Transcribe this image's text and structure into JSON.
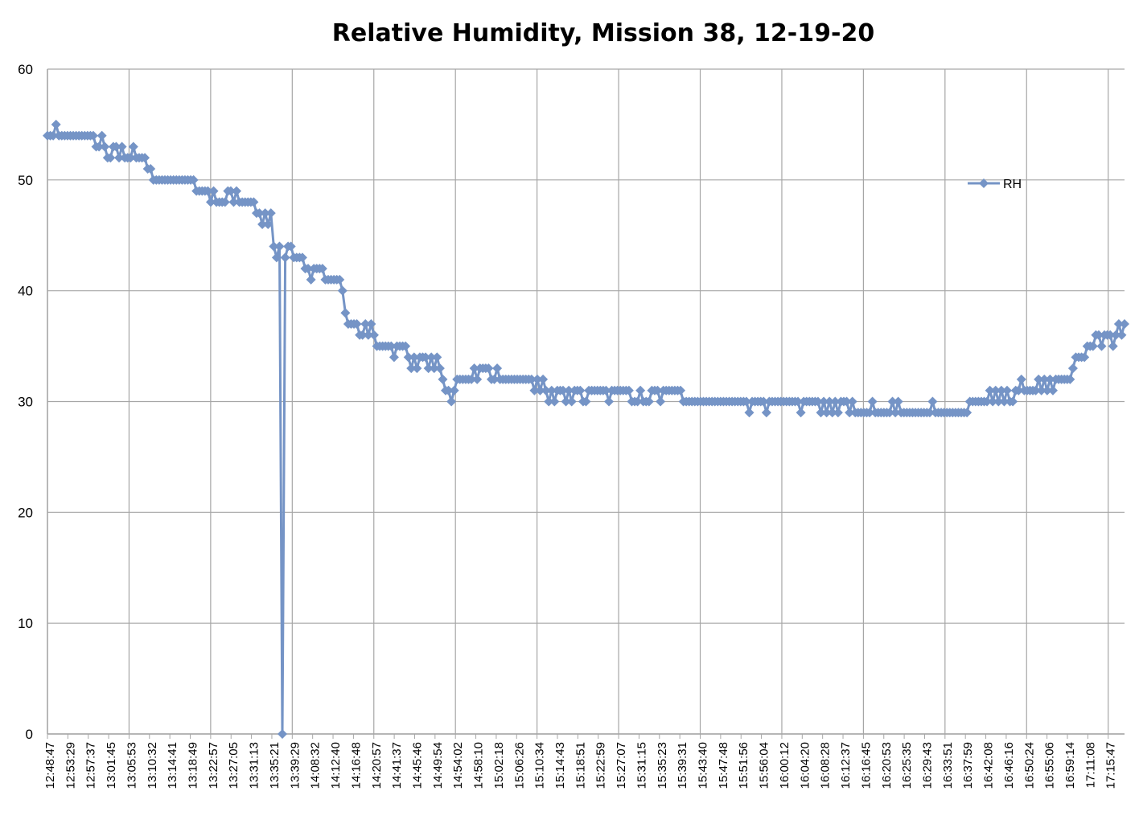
{
  "chart_data": {
    "type": "line",
    "title": "Relative Humidity, Mission 38, 12-19-20",
    "xlabel": "",
    "ylabel": "",
    "ylim": [
      0,
      60
    ],
    "y_ticks": [
      0,
      10,
      20,
      30,
      40,
      50,
      60
    ],
    "grid": true,
    "legend": "right",
    "line_color": "#7594C6",
    "marker": "diamond",
    "x_tick_labels": [
      "12:48:47",
      "12:53:29",
      "12:57:37",
      "13:01:45",
      "13:05:53",
      "13:10:32",
      "13:14:41",
      "13:18:49",
      "13:22:57",
      "13:27:05",
      "13:31:13",
      "13:35:21",
      "13:39:29",
      "14:08:32",
      "14:12:40",
      "14:16:48",
      "14:20:57",
      "14:41:37",
      "14:45:46",
      "14:49:54",
      "14:54:02",
      "14:58:10",
      "15:02:18",
      "15:06:26",
      "15:10:34",
      "15:14:43",
      "15:18:51",
      "15:22:59",
      "15:27:07",
      "15:31:15",
      "15:35:23",
      "15:39:31",
      "15:43:40",
      "15:47:48",
      "15:51:56",
      "15:56:04",
      "16:00:12",
      "16:04:20",
      "16:08:28",
      "16:12:37",
      "16:16:45",
      "16:20:53",
      "16:25:35",
      "16:29:43",
      "16:33:51",
      "16:37:59",
      "16:42:08",
      "16:46:16",
      "16:50:24",
      "16:55:06",
      "16:59:14",
      "17:11:08",
      "17:15:47"
    ],
    "series": [
      {
        "name": "RH",
        "values": [
          54,
          54,
          54,
          55,
          54,
          54,
          54,
          54,
          54,
          54,
          54,
          54,
          54,
          54,
          54,
          54,
          54,
          53,
          53,
          54,
          53,
          52,
          52,
          53,
          53,
          52,
          53,
          52,
          52,
          52,
          53,
          52,
          52,
          52,
          52,
          51,
          51,
          50,
          50,
          50,
          50,
          50,
          50,
          50,
          50,
          50,
          50,
          50,
          50,
          50,
          50,
          50,
          49,
          49,
          49,
          49,
          49,
          48,
          49,
          48,
          48,
          48,
          48,
          49,
          49,
          48,
          49,
          48,
          48,
          48,
          48,
          48,
          48,
          47,
          47,
          46,
          47,
          46,
          47,
          44,
          43,
          44,
          0,
          43,
          44,
          44,
          43,
          43,
          43,
          43,
          42,
          42,
          41,
          42,
          42,
          42,
          42,
          41,
          41,
          41,
          41,
          41,
          41,
          40,
          38,
          37,
          37,
          37,
          37,
          36,
          36,
          37,
          36,
          37,
          36,
          35,
          35,
          35,
          35,
          35,
          35,
          34,
          35,
          35,
          35,
          35,
          34,
          33,
          34,
          33,
          34,
          34,
          34,
          33,
          34,
          33,
          34,
          33,
          32,
          31,
          31,
          30,
          31,
          32,
          32,
          32,
          32,
          32,
          32,
          33,
          32,
          33,
          33,
          33,
          33,
          32,
          32,
          33,
          32,
          32,
          32,
          32,
          32,
          32,
          32,
          32,
          32,
          32,
          32,
          32,
          31,
          32,
          31,
          32,
          31,
          30,
          31,
          30,
          31,
          31,
          31,
          30,
          31,
          30,
          31,
          31,
          31,
          30,
          30,
          31,
          31,
          31,
          31,
          31,
          31,
          31,
          30,
          31,
          31,
          31,
          31,
          31,
          31,
          31,
          30,
          30,
          30,
          31,
          30,
          30,
          30,
          31,
          31,
          31,
          30,
          31,
          31,
          31,
          31,
          31,
          31,
          31,
          30,
          30,
          30,
          30,
          30,
          30,
          30,
          30,
          30,
          30,
          30,
          30,
          30,
          30,
          30,
          30,
          30,
          30,
          30,
          30,
          30,
          30,
          30,
          29,
          30,
          30,
          30,
          30,
          30,
          29,
          30,
          30,
          30,
          30,
          30,
          30,
          30,
          30,
          30,
          30,
          30,
          29,
          30,
          30,
          30,
          30,
          30,
          30,
          29,
          30,
          29,
          30,
          29,
          30,
          29,
          30,
          30,
          30,
          29,
          30,
          29,
          29,
          29,
          29,
          29,
          29,
          30,
          29,
          29,
          29,
          29,
          29,
          29,
          30,
          29,
          30,
          29,
          29,
          29,
          29,
          29,
          29,
          29,
          29,
          29,
          29,
          29,
          30,
          29,
          29,
          29,
          29,
          29,
          29,
          29,
          29,
          29,
          29,
          29,
          29,
          30,
          30,
          30,
          30,
          30,
          30,
          30,
          31,
          30,
          31,
          30,
          31,
          30,
          31,
          30,
          30,
          31,
          31,
          32,
          31,
          31,
          31,
          31,
          31,
          32,
          31,
          32,
          31,
          32,
          31,
          32,
          32,
          32,
          32,
          32,
          32,
          33,
          34,
          34,
          34,
          34,
          35,
          35,
          35,
          36,
          36,
          35,
          36,
          36,
          36,
          35,
          36,
          37,
          36,
          37
        ]
      }
    ]
  }
}
